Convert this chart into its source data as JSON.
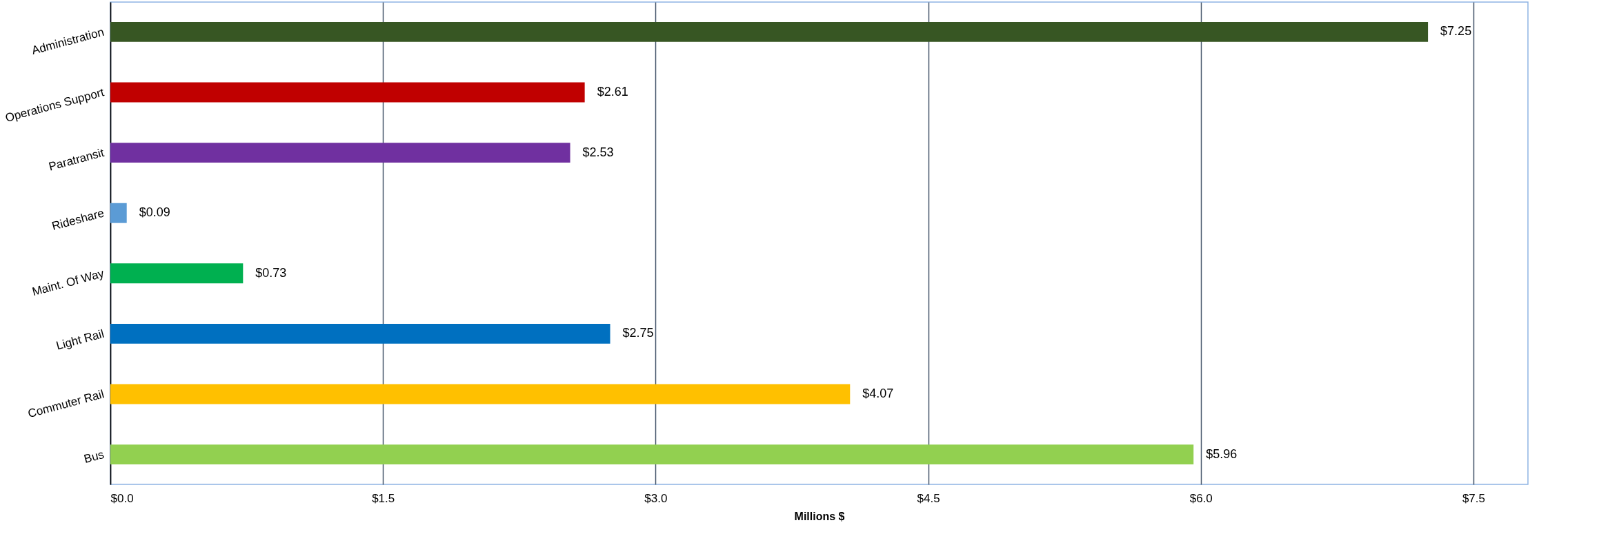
{
  "chart_data": {
    "type": "bar",
    "orientation": "horizontal",
    "xlabel": "Millions $",
    "categories": [
      "Administration",
      "Operations Support",
      "Paratransit",
      "Rideshare",
      "Maint. Of Way",
      "Light Rail",
      "Commuter Rail",
      "Bus"
    ],
    "values": [
      7.25,
      2.61,
      2.53,
      0.09,
      0.73,
      2.75,
      4.07,
      5.96
    ],
    "colors": [
      "#375623",
      "#c00000",
      "#7030a0",
      "#5b9bd5",
      "#00b050",
      "#0070c0",
      "#ffc000",
      "#92d050"
    ],
    "value_labels": [
      "$7.25",
      "$2.61",
      "$2.53",
      "$0.09",
      "$0.73",
      "$2.75",
      "$4.07",
      "$5.96"
    ],
    "xlim": [
      0,
      7.8
    ],
    "xticks": [
      {
        "value": 0,
        "label": "$0.0"
      },
      {
        "value": 1.5,
        "label": "$1.5"
      },
      {
        "value": 3,
        "label": "$3.0"
      },
      {
        "value": 4.5,
        "label": "$4.5"
      },
      {
        "value": 6,
        "label": "$6.0"
      },
      {
        "value": 7.5,
        "label": "$7.5"
      }
    ],
    "grid": "x"
  }
}
